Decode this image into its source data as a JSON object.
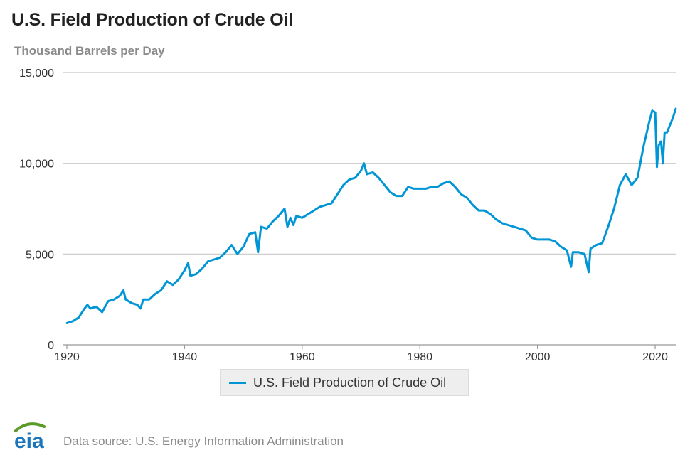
{
  "title": "U.S. Field Production of Crude Oil",
  "subtitle": "Thousand Barrels per Day",
  "source": "Data source: U.S. Energy Information Administration",
  "logo_text": "eia",
  "colors": {
    "line": "#0096d6",
    "grid": "#c8c8c8",
    "axis_text": "#333333",
    "logo_green": "#5a9a28",
    "logo_blue": "#1a75bb"
  },
  "chart_data": {
    "type": "line",
    "title": "U.S. Field Production of Crude Oil",
    "ylabel": "Thousand Barrels per Day",
    "xlabel": "",
    "xlim": [
      1920,
      2023.5
    ],
    "ylim": [
      0,
      15000
    ],
    "xticks": [
      1920,
      1940,
      1960,
      1980,
      2000,
      2020
    ],
    "xtick_labels": [
      "1920",
      "1940",
      "1960",
      "1980",
      "2000",
      "2020"
    ],
    "yticks": [
      0,
      5000,
      10000,
      15000
    ],
    "ytick_labels": [
      "0",
      "5,000",
      "10,000",
      "15,000"
    ],
    "grid": "horizontal",
    "legend": "bottom-center",
    "series": [
      {
        "name": "U.S. Field Production of Crude Oil",
        "color": "#0096d6",
        "x": [
          1920,
          1921,
          1922,
          1923,
          1923.5,
          1924,
          1925,
          1926,
          1927,
          1928,
          1929,
          1929.6,
          1930,
          1931,
          1932,
          1932.5,
          1933,
          1934,
          1935,
          1936,
          1937,
          1938,
          1939,
          1940,
          1940.6,
          1941,
          1942,
          1943,
          1944,
          1945,
          1946,
          1947,
          1948,
          1949,
          1950,
          1951,
          1952,
          1952.5,
          1953,
          1954,
          1955,
          1956,
          1957,
          1957.5,
          1958,
          1958.5,
          1959,
          1960,
          1961,
          1962,
          1963,
          1964,
          1965,
          1966,
          1967,
          1968,
          1969,
          1970,
          1970.5,
          1971,
          1972,
          1973,
          1974,
          1975,
          1976,
          1977,
          1978,
          1979,
          1980,
          1981,
          1982,
          1983,
          1984,
          1985,
          1986,
          1986.5,
          1987,
          1988,
          1989,
          1990,
          1991,
          1992,
          1993,
          1994,
          1995,
          1996,
          1997,
          1998,
          1999,
          2000,
          2001,
          2002,
          2003,
          2004,
          2005,
          2005.7,
          2006,
          2007,
          2008,
          2008.7,
          2009,
          2010,
          2011,
          2012,
          2013,
          2014,
          2015,
          2016,
          2017,
          2018,
          2019,
          2019.5,
          2020,
          2020.3,
          2020.6,
          2021,
          2021.3,
          2021.6,
          2022,
          2023,
          2023.5
        ],
        "values": [
          1200,
          1300,
          1500,
          2000,
          2200,
          2000,
          2100,
          1800,
          2400,
          2500,
          2700,
          3000,
          2500,
          2300,
          2200,
          2000,
          2500,
          2500,
          2800,
          3000,
          3500,
          3300,
          3600,
          4100,
          4500,
          3800,
          3900,
          4200,
          4600,
          4700,
          4800,
          5100,
          5500,
          5000,
          5400,
          6100,
          6200,
          5100,
          6500,
          6400,
          6800,
          7100,
          7500,
          6500,
          7000,
          6600,
          7100,
          7000,
          7200,
          7400,
          7600,
          7700,
          7800,
          8300,
          8800,
          9100,
          9200,
          9600,
          10000,
          9400,
          9500,
          9200,
          8800,
          8400,
          8200,
          8200,
          8700,
          8600,
          8600,
          8600,
          8700,
          8700,
          8900,
          9000,
          8700,
          8500,
          8300,
          8100,
          7700,
          7400,
          7400,
          7200,
          6900,
          6700,
          6600,
          6500,
          6400,
          6300,
          5900,
          5800,
          5800,
          5800,
          5700,
          5400,
          5200,
          4300,
          5100,
          5100,
          5000,
          4000,
          5300,
          5500,
          5600,
          6500,
          7500,
          8800,
          9400,
          8800,
          9200,
          10900,
          12300,
          12900,
          12800,
          9800,
          11000,
          11200,
          10000,
          11700,
          11700,
          12500,
          13000
        ]
      }
    ]
  }
}
